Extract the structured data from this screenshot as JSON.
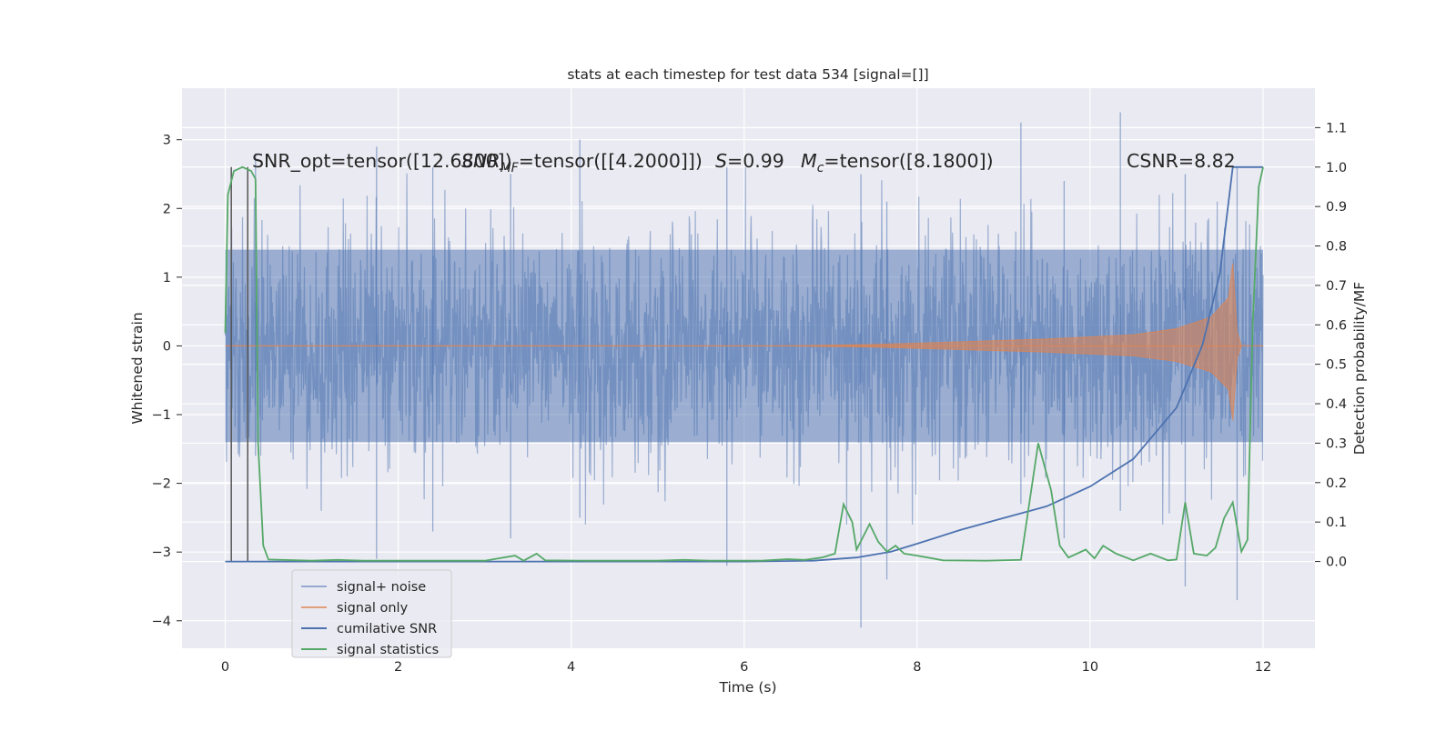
{
  "chart_data": {
    "type": "line",
    "title": "stats at each timestep for test data 534 [signal=[]]",
    "xlabel": "Time (s)",
    "ylabel_left": "Whitened strain",
    "ylabel_right": "Detection probability/MF",
    "xlim": [
      -0.5,
      12.6
    ],
    "ylim_left": [
      -4.4,
      3.75
    ],
    "ylim_right": [
      -0.22,
      1.2
    ],
    "xticks": [
      "0",
      "2",
      "4",
      "6",
      "8",
      "10",
      "12"
    ],
    "yticks_left": [
      "−4",
      "−3",
      "−2",
      "−1",
      "0",
      "1",
      "2",
      "3"
    ],
    "yticks_right": [
      "0.0",
      "0.1",
      "0.2",
      "0.3",
      "0.4",
      "0.5",
      "0.6",
      "0.7",
      "0.8",
      "0.9",
      "1.0",
      "1.1"
    ],
    "grid": true,
    "legend_position": "lower-left",
    "annotations": {
      "snr_opt": "SNR_opt=tensor([12.6800])",
      "snr_mf_prefix": "SNR",
      "snr_mf_subscript": "MF",
      "snr_mf_rest": "=tensor([[4.2000]])",
      "s_symbol": "S",
      "s_value": "=0.99",
      "mc_symbol": "M",
      "mc_subscript": "c",
      "mc_rest": "=tensor([8.1800])",
      "csnr": "CSNR=8.82"
    },
    "vertical_markers_x": [
      0.07,
      0.26
    ],
    "series": [
      {
        "name": "signal+ noise",
        "color": "#4c72b0",
        "opacity": 0.5,
        "axis": "left",
        "x_range": [
          0,
          12
        ],
        "typical_amplitude": 1.5,
        "spikes": [
          [
            0.35,
            2.8,
            -1.6
          ],
          [
            1.75,
            2.9,
            -3.1
          ],
          [
            2.4,
            2.6,
            -2.7
          ],
          [
            3.3,
            2.5,
            -2.8
          ],
          [
            4.1,
            3.0,
            -2.5
          ],
          [
            5.8,
            2.6,
            -3.2
          ],
          [
            7.35,
            2.5,
            -4.1
          ],
          [
            7.65,
            2.1,
            -3.4
          ],
          [
            9.2,
            3.25,
            -2.3
          ],
          [
            9.7,
            2.4,
            -2.8
          ],
          [
            10.35,
            3.4,
            -2.4
          ],
          [
            11.1,
            2.5,
            -3.5
          ],
          [
            11.7,
            2.6,
            -3.7
          ]
        ]
      },
      {
        "name": "signal only",
        "color": "#dd8452",
        "axis": "left",
        "envelope": [
          [
            0,
            0.0
          ],
          [
            6.5,
            0.0
          ],
          [
            7.5,
            0.02
          ],
          [
            8.5,
            0.06
          ],
          [
            9.5,
            0.1
          ],
          [
            10.5,
            0.16
          ],
          [
            11,
            0.25
          ],
          [
            11.4,
            0.42
          ],
          [
            11.6,
            0.7
          ],
          [
            11.65,
            1.2
          ],
          [
            11.7,
            0.2
          ],
          [
            11.75,
            0.0
          ],
          [
            12,
            0.0
          ]
        ]
      },
      {
        "name": "cumilative SNR",
        "color": "#4c72b0",
        "axis": "right",
        "points": [
          [
            0,
            0.0
          ],
          [
            6.0,
            0.0
          ],
          [
            6.8,
            0.002
          ],
          [
            7.3,
            0.01
          ],
          [
            7.7,
            0.025
          ],
          [
            8.0,
            0.045
          ],
          [
            8.5,
            0.08
          ],
          [
            9.0,
            0.11
          ],
          [
            9.5,
            0.14
          ],
          [
            10.0,
            0.19
          ],
          [
            10.5,
            0.26
          ],
          [
            11.0,
            0.39
          ],
          [
            11.3,
            0.55
          ],
          [
            11.5,
            0.73
          ],
          [
            11.65,
            1.0
          ],
          [
            12.0,
            1.0
          ]
        ]
      },
      {
        "name": "signal statistics",
        "color": "#55a868",
        "axis": "right",
        "points": [
          [
            0,
            0.58
          ],
          [
            0.03,
            0.93
          ],
          [
            0.1,
            0.99
          ],
          [
            0.2,
            1.0
          ],
          [
            0.3,
            0.99
          ],
          [
            0.35,
            0.97
          ],
          [
            0.38,
            0.3
          ],
          [
            0.44,
            0.04
          ],
          [
            0.5,
            0.005
          ],
          [
            1.0,
            0.002
          ],
          [
            1.3,
            0.004
          ],
          [
            1.6,
            0.002
          ],
          [
            2.0,
            0.002
          ],
          [
            2.5,
            0.002
          ],
          [
            3.0,
            0.002
          ],
          [
            3.35,
            0.015
          ],
          [
            3.45,
            0.002
          ],
          [
            3.6,
            0.02
          ],
          [
            3.7,
            0.003
          ],
          [
            4.2,
            0.002
          ],
          [
            5.0,
            0.002
          ],
          [
            5.3,
            0.004
          ],
          [
            5.6,
            0.002
          ],
          [
            6.2,
            0.002
          ],
          [
            6.5,
            0.006
          ],
          [
            6.7,
            0.004
          ],
          [
            6.9,
            0.01
          ],
          [
            7.05,
            0.02
          ],
          [
            7.15,
            0.145
          ],
          [
            7.25,
            0.1
          ],
          [
            7.3,
            0.03
          ],
          [
            7.45,
            0.095
          ],
          [
            7.55,
            0.05
          ],
          [
            7.65,
            0.025
          ],
          [
            7.75,
            0.04
          ],
          [
            7.85,
            0.02
          ],
          [
            8.0,
            0.015
          ],
          [
            8.3,
            0.003
          ],
          [
            8.8,
            0.002
          ],
          [
            9.2,
            0.004
          ],
          [
            9.4,
            0.3
          ],
          [
            9.55,
            0.18
          ],
          [
            9.65,
            0.04
          ],
          [
            9.75,
            0.01
          ],
          [
            9.95,
            0.03
          ],
          [
            10.05,
            0.008
          ],
          [
            10.15,
            0.04
          ],
          [
            10.3,
            0.02
          ],
          [
            10.5,
            0.003
          ],
          [
            10.7,
            0.02
          ],
          [
            10.9,
            0.003
          ],
          [
            11.0,
            0.005
          ],
          [
            11.1,
            0.15
          ],
          [
            11.2,
            0.02
          ],
          [
            11.35,
            0.015
          ],
          [
            11.45,
            0.035
          ],
          [
            11.55,
            0.11
          ],
          [
            11.65,
            0.15
          ],
          [
            11.75,
            0.025
          ],
          [
            11.82,
            0.055
          ],
          [
            11.88,
            0.6
          ],
          [
            11.95,
            0.95
          ],
          [
            12.0,
            1.0
          ]
        ]
      }
    ]
  }
}
